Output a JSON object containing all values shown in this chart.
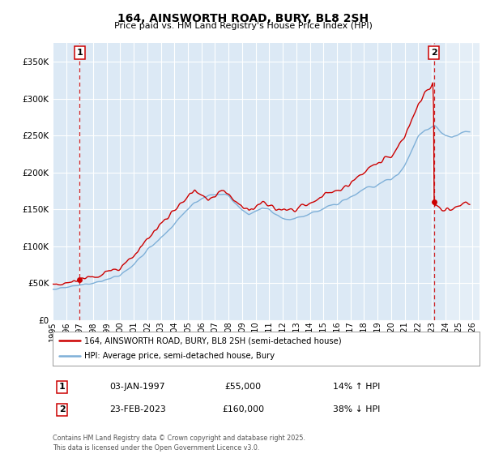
{
  "title": "164, AINSWORTH ROAD, BURY, BL8 2SH",
  "subtitle": "Price paid vs. HM Land Registry's House Price Index (HPI)",
  "background_color": "#ffffff",
  "plot_bg_color": "#dce9f5",
  "grid_color": "#ffffff",
  "legend_line1": "164, AINSWORTH ROAD, BURY, BL8 2SH (semi-detached house)",
  "legend_line2": "HPI: Average price, semi-detached house, Bury",
  "marker1_date": "03-JAN-1997",
  "marker1_price": 55000,
  "marker1_hpi": "14% ↑ HPI",
  "marker2_date": "23-FEB-2023",
  "marker2_price": 160000,
  "marker2_hpi": "38% ↓ HPI",
  "footer": "Contains HM Land Registry data © Crown copyright and database right 2025.\nThis data is licensed under the Open Government Licence v3.0.",
  "ylim": [
    0,
    375000
  ],
  "yticks": [
    0,
    50000,
    100000,
    150000,
    200000,
    250000,
    300000,
    350000
  ],
  "xlim_start": 1995.0,
  "xlim_end": 2026.5,
  "red_line_color": "#cc0000",
  "blue_line_color": "#7fb0d8",
  "marker_point_color": "#cc0000",
  "dashed_line_color": "#cc0000"
}
